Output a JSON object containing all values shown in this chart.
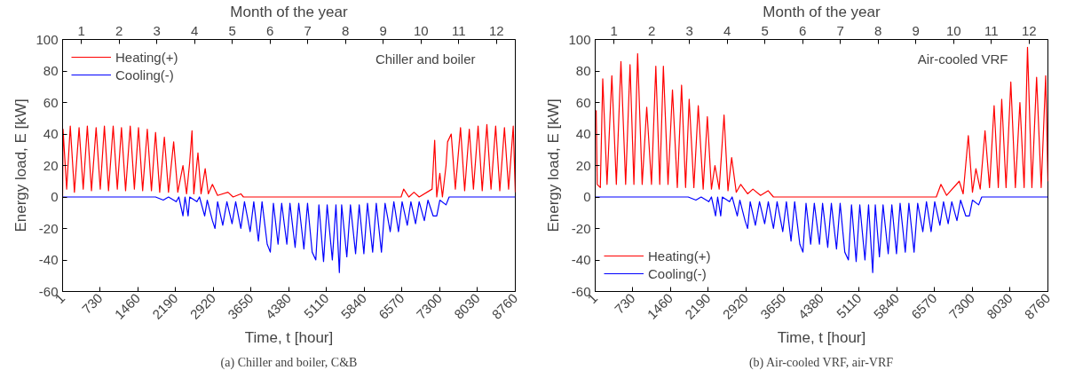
{
  "chart_data": [
    {
      "type": "line",
      "title": "(a) Chiller and boiler, C&B",
      "annotations": [
        "Chiller and boiler"
      ],
      "xlabel": "Time, t [hour]",
      "ylabel": "Energy load, E [kW]",
      "x2label": "Month of the year",
      "xlim": [
        1,
        8760
      ],
      "xticks": [
        1,
        730,
        1460,
        2190,
        2920,
        3650,
        4380,
        5110,
        5840,
        6570,
        7300,
        8030,
        8760
      ],
      "ylim": [
        -60,
        100
      ],
      "yticks": [
        -60,
        -40,
        -20,
        0,
        20,
        40,
        60,
        80,
        100
      ],
      "x2lim": [
        0.5,
        12.5
      ],
      "x2ticks": [
        1,
        2,
        3,
        4,
        5,
        6,
        7,
        8,
        9,
        10,
        11,
        12
      ],
      "grid": false,
      "legend": "top left",
      "series": [
        {
          "name": "Heating(+)",
          "color": "#ff0000",
          "x": [
            1,
            10,
            80,
            150,
            230,
            320,
            400,
            480,
            560,
            650,
            730,
            810,
            890,
            980,
            1060,
            1140,
            1220,
            1310,
            1390,
            1470,
            1550,
            1640,
            1720,
            1800,
            1880,
            1970,
            2050,
            2150,
            2230,
            2330,
            2400,
            2460,
            2505,
            2540,
            2620,
            2680,
            2760,
            2820,
            2900,
            3000,
            3200,
            3300,
            3450,
            3500,
            6550,
            6600,
            6700,
            6800,
            6900,
            7150,
            7200,
            7240,
            7300,
            7350,
            7420,
            7450,
            7520,
            7600,
            7700,
            7780,
            7870,
            7950,
            8040,
            8120,
            8210,
            8290,
            8380,
            8460,
            8550,
            8630,
            8720,
            8760
          ],
          "values": [
            0,
            43,
            5,
            45,
            3,
            44,
            5,
            45,
            4,
            44,
            5,
            45,
            4,
            45,
            5,
            44,
            4,
            45,
            5,
            44,
            4,
            43,
            4,
            41,
            3,
            38,
            3,
            35,
            3,
            20,
            2,
            22,
            42,
            2,
            28,
            2,
            18,
            2,
            8,
            1,
            3,
            0,
            2,
            0,
            0,
            5,
            0,
            3,
            0,
            5,
            36,
            0,
            15,
            0,
            20,
            35,
            40,
            5,
            44,
            4,
            43,
            5,
            45,
            4,
            46,
            5,
            45,
            4,
            44,
            5,
            45,
            3
          ]
        },
        {
          "name": "Cooling(-)",
          "color": "#0000ff",
          "x": [
            1,
            1800,
            1950,
            2050,
            2200,
            2250,
            2330,
            2370,
            2430,
            2460,
            2600,
            2650,
            2750,
            2800,
            2900,
            2950,
            3000,
            3100,
            3180,
            3280,
            3350,
            3450,
            3520,
            3630,
            3700,
            3790,
            3860,
            3960,
            4020,
            4080,
            4170,
            4240,
            4340,
            4400,
            4500,
            4570,
            4670,
            4740,
            4830,
            4900,
            4960,
            5050,
            5120,
            5220,
            5290,
            5356,
            5400,
            5500,
            5570,
            5670,
            5740,
            5830,
            5900,
            6000,
            6070,
            6170,
            6240,
            6340,
            6410,
            6500,
            6570,
            6670,
            6740,
            6830,
            6900,
            7000,
            7070,
            7170,
            7240,
            7300,
            7420,
            7480,
            8760
          ],
          "values": [
            0,
            0,
            -2,
            0,
            -3,
            0,
            -12,
            0,
            -12,
            0,
            -3,
            0,
            -12,
            -2,
            -15,
            -20,
            -3,
            -18,
            -3,
            -17,
            -3,
            -20,
            -3,
            -22,
            -3,
            -28,
            -3,
            -30,
            -35,
            -4,
            -30,
            -4,
            -30,
            -4,
            -32,
            -4,
            -33,
            -4,
            -35,
            -40,
            -5,
            -41,
            -5,
            -40,
            -5,
            -48,
            -5,
            -38,
            -5,
            -36,
            -5,
            -36,
            -4,
            -35,
            -4,
            -35,
            -4,
            -22,
            -3,
            -22,
            -3,
            -18,
            -3,
            -17,
            -3,
            -15,
            -2,
            -12,
            -12,
            -2,
            -5,
            0,
            0
          ]
        }
      ]
    },
    {
      "type": "line",
      "title": "(b) Air-cooled VRF, air-VRF",
      "annotations": [
        "Air-cooled VRF"
      ],
      "xlabel": "Time, t [hour]",
      "ylabel": "Energy load, E [kW]",
      "x2label": "Month of the year",
      "xlim": [
        1,
        8760
      ],
      "xticks": [
        1,
        730,
        1460,
        2190,
        2920,
        3650,
        4380,
        5110,
        5840,
        6570,
        7300,
        8030,
        8760
      ],
      "ylim": [
        -60,
        100
      ],
      "yticks": [
        -60,
        -40,
        -20,
        0,
        20,
        40,
        60,
        80,
        100
      ],
      "x2lim": [
        0.5,
        12.5
      ],
      "x2ticks": [
        1,
        2,
        3,
        4,
        5,
        6,
        7,
        8,
        9,
        10,
        11,
        12
      ],
      "grid": false,
      "legend": "bottom left",
      "series": [
        {
          "name": "Heating(+)",
          "color": "#ff0000",
          "x": [
            20,
            40,
            100,
            147,
            230,
            323,
            410,
            499,
            590,
            675,
            750,
            822,
            910,
            998,
            1090,
            1174,
            1250,
            1320,
            1410,
            1496,
            1590,
            1672,
            1750,
            1819,
            1910,
            1995,
            2090,
            2171,
            2250,
            2318,
            2400,
            2494,
            2570,
            2641,
            2730,
            2817,
            2950,
            3052,
            3200,
            3346,
            3450,
            6600,
            6690,
            6800,
            7044,
            7120,
            7220,
            7300,
            7367,
            7450,
            7543,
            7630,
            7719,
            7800,
            7866,
            7950,
            8042,
            8130,
            8218,
            8300,
            8365,
            8450,
            8541,
            8630,
            8717,
            8760
          ],
          "values": [
            55,
            8,
            6,
            75,
            8,
            77,
            8,
            86,
            8,
            84,
            8,
            91,
            8,
            57,
            8,
            83,
            8,
            83,
            8,
            68,
            6,
            71,
            6,
            62,
            6,
            58,
            5,
            51,
            5,
            20,
            5,
            52,
            4,
            25,
            3,
            8,
            2,
            5,
            1,
            4,
            0,
            0,
            8,
            1,
            10,
            2,
            39,
            3,
            18,
            5,
            42,
            6,
            58,
            6,
            62,
            6,
            73,
            6,
            60,
            6,
            95,
            6,
            76,
            6,
            77,
            10
          ]
        },
        {
          "name": "Cooling(-)",
          "color": "#0000ff",
          "x": [
            1,
            1800,
            1950,
            2050,
            2200,
            2250,
            2330,
            2370,
            2430,
            2460,
            2600,
            2650,
            2750,
            2800,
            2900,
            2950,
            3000,
            3100,
            3180,
            3280,
            3350,
            3450,
            3520,
            3630,
            3700,
            3790,
            3860,
            3960,
            4020,
            4080,
            4170,
            4240,
            4340,
            4400,
            4500,
            4570,
            4670,
            4740,
            4830,
            4900,
            4960,
            5050,
            5120,
            5220,
            5290,
            5370,
            5420,
            5500,
            5570,
            5670,
            5740,
            5830,
            5900,
            6000,
            6070,
            6170,
            6240,
            6340,
            6410,
            6500,
            6570,
            6670,
            6740,
            6830,
            6900,
            7000,
            7070,
            7170,
            7240,
            7300,
            7420,
            7480,
            8760
          ],
          "values": [
            0,
            0,
            -2,
            0,
            -3,
            0,
            -12,
            0,
            -12,
            0,
            -3,
            0,
            -12,
            -2,
            -15,
            -20,
            -3,
            -18,
            -3,
            -17,
            -3,
            -20,
            -3,
            -22,
            -3,
            -28,
            -3,
            -30,
            -35,
            -4,
            -30,
            -4,
            -30,
            -4,
            -32,
            -4,
            -33,
            -4,
            -35,
            -40,
            -5,
            -41,
            -5,
            -40,
            -5,
            -48,
            -5,
            -38,
            -5,
            -36,
            -5,
            -36,
            -4,
            -35,
            -4,
            -35,
            -4,
            -22,
            -3,
            -22,
            -3,
            -18,
            -3,
            -17,
            -3,
            -15,
            -2,
            -12,
            -12,
            -2,
            -5,
            0,
            0
          ]
        }
      ]
    }
  ]
}
